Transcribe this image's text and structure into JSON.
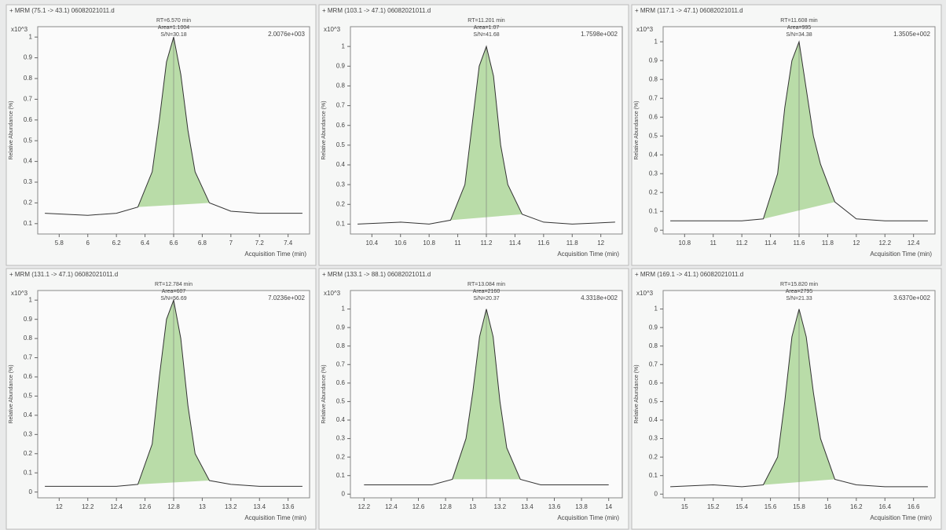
{
  "chart_data": [
    {
      "type": "line",
      "title": "+ MRM (75.1 -> 43.1) 06082021011.d",
      "scale_label": "x10^3",
      "corner_label": "2.0076e+003",
      "annotations": [
        "RT=6.570 min",
        "Area=1.1004",
        "S/N=30.18"
      ],
      "y_label": "Relative Abundance (%)",
      "x_label": "Acquisition Time (min)",
      "x": [
        5.7,
        6.0,
        6.2,
        6.35,
        6.45,
        6.5,
        6.55,
        6.6,
        6.65,
        6.7,
        6.75,
        6.85,
        7.0,
        7.2,
        7.5
      ],
      "values": [
        0.15,
        0.14,
        0.15,
        0.18,
        0.35,
        0.6,
        0.88,
        1.0,
        0.82,
        0.55,
        0.35,
        0.2,
        0.16,
        0.15,
        0.15
      ],
      "color": "#333333",
      "fill_color": "#b9dca8",
      "xlim": [
        5.65,
        7.55
      ],
      "xticks": [
        5.8,
        6,
        6.2,
        6.4,
        6.6,
        6.8,
        7,
        7.2,
        7.4
      ],
      "ylim": [
        0.05,
        1.05
      ],
      "yticks": [
        0.1,
        0.2,
        0.3,
        0.4,
        0.5,
        0.6,
        0.7,
        0.8,
        0.9,
        1
      ]
    },
    {
      "type": "line",
      "title": "+ MRM (103.1 -> 47.1) 06082021011.d",
      "scale_label": "x10^3",
      "corner_label": "1.7598e+002",
      "annotations": [
        "RT=11.201 min",
        "Area=1.07",
        "S/N=41.68"
      ],
      "y_label": "Relative Abundance (%)",
      "x_label": "Acquisition Time (min)",
      "x": [
        10.3,
        10.6,
        10.8,
        10.95,
        11.05,
        11.1,
        11.15,
        11.2,
        11.25,
        11.3,
        11.35,
        11.45,
        11.6,
        11.8,
        12.1
      ],
      "values": [
        0.1,
        0.11,
        0.1,
        0.12,
        0.3,
        0.6,
        0.9,
        1.0,
        0.85,
        0.5,
        0.3,
        0.15,
        0.11,
        0.1,
        0.11
      ],
      "color": "#333333",
      "fill_color": "#b9dca8",
      "xlim": [
        10.25,
        12.15
      ],
      "xticks": [
        10.4,
        10.6,
        10.8,
        11,
        11.2,
        11.4,
        11.6,
        11.8,
        12
      ],
      "ylim": [
        0.05,
        1.1
      ],
      "yticks": [
        0.1,
        0.2,
        0.3,
        0.4,
        0.5,
        0.6,
        0.7,
        0.8,
        0.9,
        1
      ]
    },
    {
      "type": "line",
      "title": "+ MRM (117.1 -> 47.1) 06082021011.d",
      "scale_label": "x10^3",
      "corner_label": "1.3505e+002",
      "annotations": [
        "RT=11.608 min",
        "Area=995",
        "S/N=34.38"
      ],
      "y_label": "Relative Abundance (%)",
      "x_label": "Acquisition Time (min)",
      "x": [
        10.7,
        11.0,
        11.2,
        11.35,
        11.45,
        11.5,
        11.55,
        11.6,
        11.65,
        11.7,
        11.75,
        11.85,
        12.0,
        12.2,
        12.5
      ],
      "values": [
        0.05,
        0.05,
        0.05,
        0.06,
        0.3,
        0.65,
        0.9,
        1.0,
        0.75,
        0.5,
        0.35,
        0.15,
        0.06,
        0.05,
        0.05
      ],
      "color": "#333333",
      "fill_color": "#b9dca8",
      "xlim": [
        10.65,
        12.55
      ],
      "xticks": [
        10.8,
        11,
        11.2,
        11.4,
        11.6,
        11.8,
        12,
        12.2,
        12.4
      ],
      "ylim": [
        -0.02,
        1.08
      ],
      "yticks": [
        0,
        0.1,
        0.2,
        0.3,
        0.4,
        0.5,
        0.6,
        0.7,
        0.8,
        0.9,
        1
      ]
    },
    {
      "type": "line",
      "title": "+ MRM (131.1 -> 47.1) 06082021011.d",
      "scale_label": "x10^3",
      "corner_label": "7.0236e+002",
      "annotations": [
        "RT=12.784 min",
        "Area=607",
        "S/N=56.69"
      ],
      "y_label": "Relative Abundance (%)",
      "x_label": "Acquisition Time (min)",
      "x": [
        11.9,
        12.2,
        12.4,
        12.55,
        12.65,
        12.7,
        12.75,
        12.8,
        12.85,
        12.9,
        12.95,
        13.05,
        13.2,
        13.4,
        13.7
      ],
      "values": [
        0.03,
        0.03,
        0.03,
        0.04,
        0.25,
        0.6,
        0.9,
        1.0,
        0.8,
        0.45,
        0.2,
        0.06,
        0.04,
        0.03,
        0.03
      ],
      "color": "#333333",
      "fill_color": "#b9dca8",
      "xlim": [
        11.85,
        13.75
      ],
      "xticks": [
        12,
        12.2,
        12.4,
        12.6,
        12.8,
        13,
        13.2,
        13.4,
        13.6
      ],
      "ylim": [
        -0.03,
        1.05
      ],
      "yticks": [
        0,
        0.1,
        0.2,
        0.3,
        0.4,
        0.5,
        0.6,
        0.7,
        0.8,
        0.9,
        1
      ]
    },
    {
      "type": "line",
      "title": "+ MRM (133.1 -> 88.1) 06082021011.d",
      "scale_label": "x10^3",
      "corner_label": "4.3318e+002",
      "annotations": [
        "RT=13.084 min",
        "Area=2160",
        "S/N=20.37"
      ],
      "y_label": "Relative Abundance (%)",
      "x_label": "Acquisition Time (min)",
      "x": [
        12.2,
        12.5,
        12.7,
        12.85,
        12.95,
        13.0,
        13.05,
        13.1,
        13.15,
        13.2,
        13.25,
        13.35,
        13.5,
        13.7,
        14.0
      ],
      "values": [
        0.05,
        0.05,
        0.05,
        0.08,
        0.3,
        0.55,
        0.85,
        1.0,
        0.85,
        0.5,
        0.25,
        0.08,
        0.05,
        0.05,
        0.05
      ],
      "color": "#333333",
      "fill_color": "#b9dca8",
      "xlim": [
        12.1,
        14.1
      ],
      "xticks": [
        12.2,
        12.4,
        12.6,
        12.8,
        13,
        13.2,
        13.4,
        13.6,
        13.8,
        14
      ],
      "ylim": [
        -0.02,
        1.1
      ],
      "yticks": [
        0,
        0.1,
        0.2,
        0.3,
        0.4,
        0.5,
        0.6,
        0.7,
        0.8,
        0.9,
        1
      ]
    },
    {
      "type": "line",
      "title": "+ MRM (169.1 -> 41.1) 06082021011.d",
      "scale_label": "x10^3",
      "corner_label": "3.6370e+002",
      "annotations": [
        "RT=15.820 min",
        "Area=2795",
        "S/N=21.33"
      ],
      "y_label": "Relative Abundance (%)",
      "x_label": "Acquisition Time (min)",
      "x": [
        14.9,
        15.2,
        15.4,
        15.55,
        15.65,
        15.7,
        15.75,
        15.8,
        15.85,
        15.9,
        15.95,
        16.05,
        16.2,
        16.4,
        16.7
      ],
      "values": [
        0.04,
        0.05,
        0.04,
        0.05,
        0.2,
        0.5,
        0.85,
        1.0,
        0.85,
        0.55,
        0.3,
        0.08,
        0.05,
        0.04,
        0.04
      ],
      "color": "#333333",
      "fill_color": "#b9dca8",
      "xlim": [
        14.85,
        16.75
      ],
      "xticks": [
        15,
        15.2,
        15.4,
        15.6,
        15.8,
        16,
        16.2,
        16.4,
        16.6
      ],
      "ylim": [
        -0.02,
        1.1
      ],
      "yticks": [
        0,
        0.1,
        0.2,
        0.3,
        0.4,
        0.5,
        0.6,
        0.7,
        0.8,
        0.9,
        1
      ]
    }
  ]
}
